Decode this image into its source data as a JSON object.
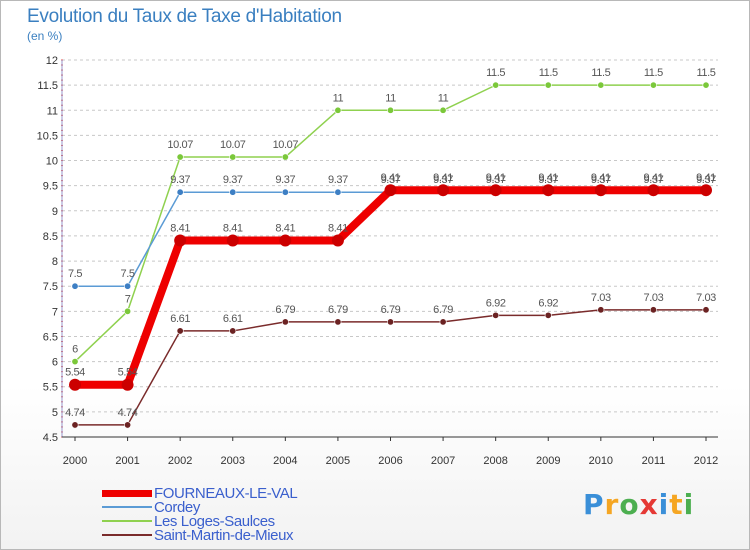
{
  "title": "Evolution du Taux de Taxe d'Habitation",
  "subtitle": "(en %)",
  "logo": {
    "text": "Proxiti",
    "colors": [
      "#3a8fd8",
      "#f5a623",
      "#4caf50",
      "#e53935",
      "#3a8fd8",
      "#f5a623",
      "#4caf50"
    ]
  },
  "chart_data": {
    "type": "line",
    "title": "Evolution du Taux de Taxe d'Habitation",
    "ylabel": "(en %)",
    "xlabel": "",
    "x": [
      "2000",
      "2001",
      "2002",
      "2003",
      "2004",
      "2005",
      "2006",
      "2007",
      "2008",
      "2009",
      "2010",
      "2011",
      "2012"
    ],
    "ylim": [
      4.5,
      12
    ],
    "yticks": [
      "4.5",
      "5",
      "5.5",
      "6",
      "6.5",
      "7",
      "7.5",
      "8",
      "8.5",
      "9",
      "9.5",
      "10",
      "10.5",
      "11",
      "11.5",
      "12"
    ],
    "grid": "dashed-horizontal",
    "legend": "bottom-left",
    "series": [
      {
        "name": "Les Loges-Saulces",
        "color": "#8fd14f",
        "point_color": "#7bc83a",
        "values": [
          6,
          7,
          10.07,
          10.07,
          10.07,
          11,
          11,
          11,
          11.5,
          11.5,
          11.5,
          11.5,
          11.5
        ],
        "labels": [
          "6",
          "7",
          "10.07",
          "10.07",
          "10.07",
          "11",
          "11",
          "11",
          "11.5",
          "11.5",
          "11.5",
          "11.5",
          "11.5"
        ]
      },
      {
        "name": "Cordey",
        "color": "#5b9bd5",
        "point_color": "#3d7fc4",
        "values": [
          7.5,
          7.5,
          9.37,
          9.37,
          9.37,
          9.37,
          9.37,
          9.37,
          9.37,
          9.37,
          9.37,
          9.37,
          9.37
        ],
        "labels": [
          "7.5",
          "7.5",
          "9.37",
          "9.37",
          "9.37",
          "9.37",
          "9.37",
          "9.37",
          "9.37",
          "9.37",
          "9.37",
          "9.37",
          "9.37"
        ]
      },
      {
        "name": "Saint-Martin-de-Mieux",
        "color": "#7a2b2b",
        "point_color": "#6b2222",
        "values": [
          4.74,
          4.74,
          6.61,
          6.61,
          6.79,
          6.79,
          6.79,
          6.79,
          6.92,
          6.92,
          7.03,
          7.03,
          7.03
        ],
        "labels": [
          "4.74",
          "4.74",
          "6.61",
          "6.61",
          "6.79",
          "6.79",
          "6.79",
          "6.79",
          "6.92",
          "6.92",
          "7.03",
          "7.03",
          "7.03"
        ]
      },
      {
        "name": "FOURNEAUX-LE-VAL",
        "color": "#ee0000",
        "point_color": "#cc0000",
        "values": [
          5.54,
          5.54,
          8.41,
          8.41,
          8.41,
          8.41,
          9.41,
          9.41,
          9.41,
          9.41,
          9.41,
          9.41,
          9.41
        ],
        "labels": [
          "5.54",
          "5.54",
          "8.41",
          "8.41",
          "8.41",
          "8.41",
          "9.41",
          "9.41",
          "9.41",
          "9.41",
          "9.41",
          "9.41",
          "9.41"
        ]
      }
    ]
  },
  "legend_order": [
    "FOURNEAUX-LE-VAL",
    "Cordey",
    "Les Loges-Saulces",
    "Saint-Martin-de-Mieux"
  ]
}
